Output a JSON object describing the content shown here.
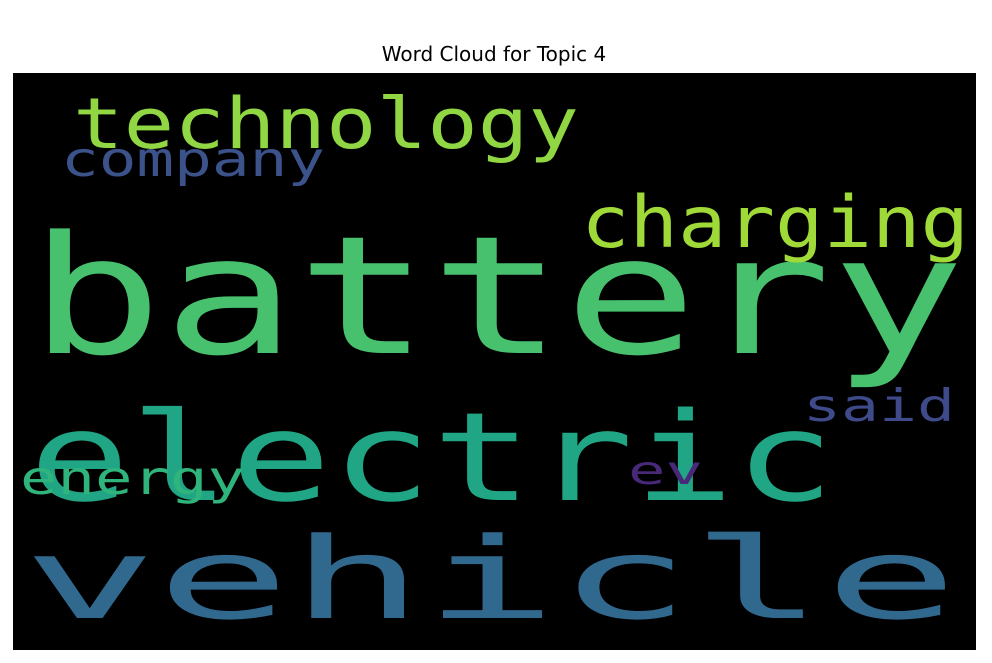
{
  "chart_data": {
    "type": "wordcloud",
    "title": "Word Cloud for Topic 4",
    "background": "#000000",
    "colormap": "viridis",
    "words": [
      {
        "text": "vehicle",
        "weight": 1.0,
        "color": "#31688e"
      },
      {
        "text": "battery",
        "weight": 0.93,
        "color": "#48c16e"
      },
      {
        "text": "electric",
        "weight": 0.74,
        "color": "#21a685"
      },
      {
        "text": "charging",
        "weight": 0.35,
        "color": "#a0da39"
      },
      {
        "text": "technology",
        "weight": 0.35,
        "color": "#90d743"
      },
      {
        "text": "company",
        "weight": 0.27,
        "color": "#3b528b"
      },
      {
        "text": "said",
        "weight": 0.26,
        "color": "#3e4a89"
      },
      {
        "text": "energy",
        "weight": 0.25,
        "color": "#2fb47c"
      },
      {
        "text": "ev",
        "weight": 0.24,
        "color": "#482878"
      }
    ]
  }
}
